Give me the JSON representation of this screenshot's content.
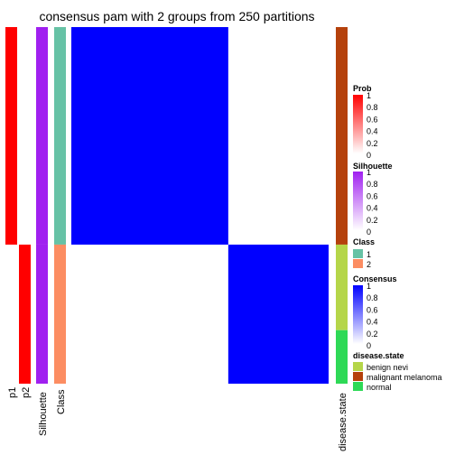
{
  "chart_data": {
    "type": "heatmap",
    "title": "consensus pam with 2 groups from 250 partitions",
    "n_samples": 100,
    "group_sizes": [
      61,
      39
    ],
    "column_labels": [
      "p1",
      "p2",
      "Silhouette",
      "Class"
    ],
    "row_annotation_label": "disease.state",
    "prob": {
      "p1": [
        1,
        0
      ],
      "p2": [
        0,
        1
      ]
    },
    "silhouette": [
      1,
      1
    ],
    "class": [
      "1",
      "2"
    ],
    "consensus_matrix": [
      [
        1,
        0
      ],
      [
        0,
        1
      ]
    ],
    "disease_state_segments": [
      {
        "state": "malignant melanoma",
        "count": 61
      },
      {
        "state": "benign nevi",
        "count": 24
      },
      {
        "state": "normal",
        "count": 15
      }
    ],
    "colors": {
      "prob": "#ff0000",
      "silhouette": "#a020f0",
      "class1": "#66c2a5",
      "class2": "#fc8d62",
      "consensus": "#0000ff",
      "benign_nevi": "#b5d649",
      "malignant_melanoma": "#b5410c",
      "normal": "#2ed956"
    },
    "legends": {
      "prob": {
        "title": "Prob",
        "ticks": [
          "1",
          "0.8",
          "0.6",
          "0.4",
          "0.2",
          "0"
        ]
      },
      "silhouette": {
        "title": "Silhouette",
        "ticks": [
          "1",
          "0.8",
          "0.6",
          "0.4",
          "0.2",
          "0"
        ]
      },
      "class": {
        "title": "Class",
        "items": [
          "1",
          "2"
        ]
      },
      "consensus": {
        "title": "Consensus",
        "ticks": [
          "1",
          "0.8",
          "0.6",
          "0.4",
          "0.2",
          "0"
        ]
      },
      "disease_state": {
        "title": "disease.state",
        "items": [
          "benign nevi",
          "malignant melanoma",
          "normal"
        ]
      }
    }
  }
}
